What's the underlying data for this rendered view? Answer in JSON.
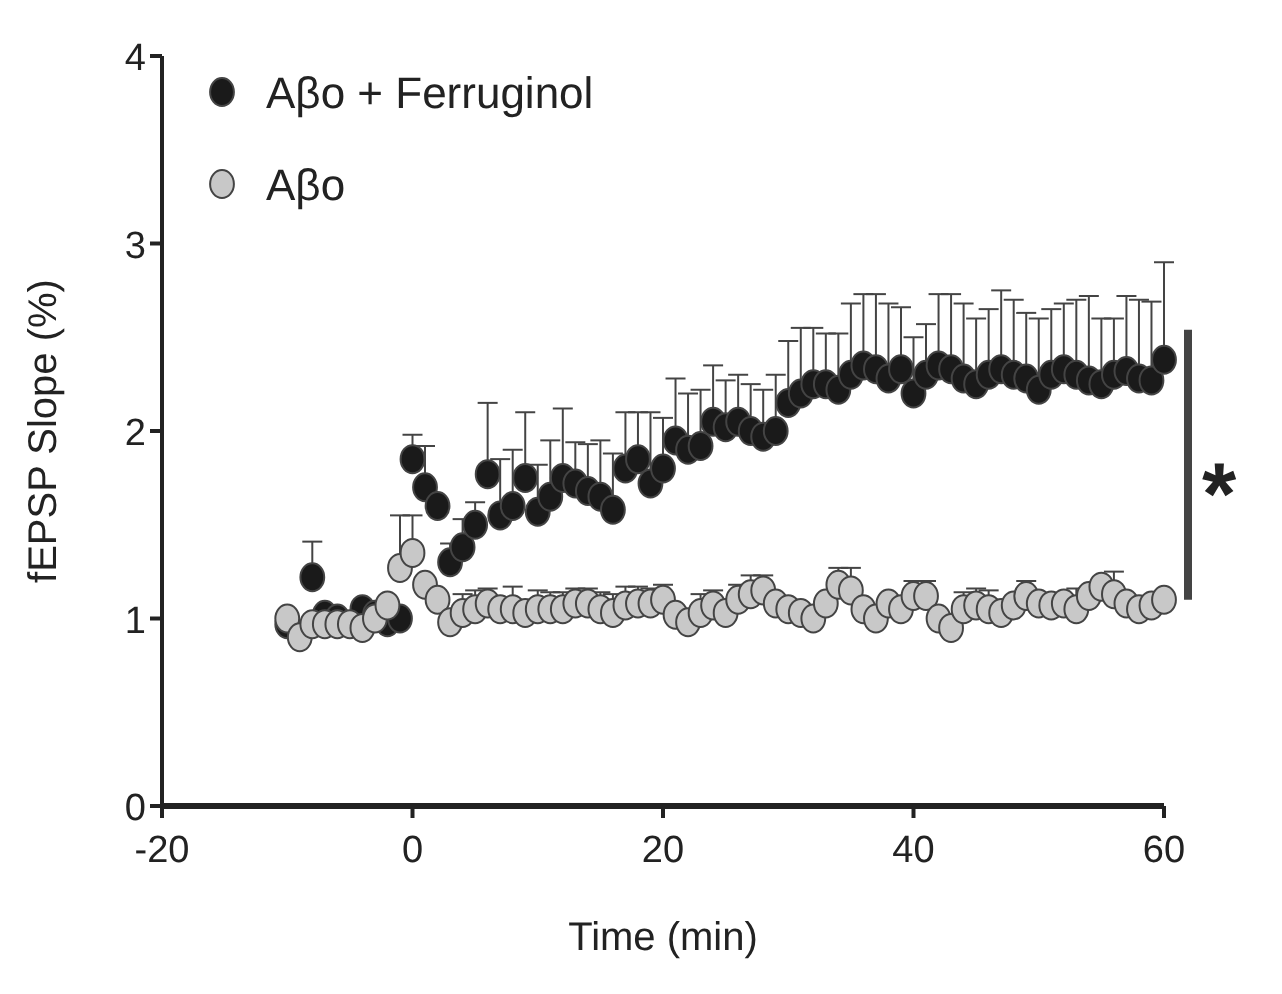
{
  "chart_data": {
    "type": "scatter",
    "xlabel": "Time (min)",
    "ylabel": "fEPSP Slope (%)",
    "xlim": [
      -20,
      60
    ],
    "xticks": [
      -20,
      0,
      20,
      40,
      60
    ],
    "ylim": [
      0,
      4
    ],
    "yticks": [
      0,
      1,
      2,
      3,
      4
    ],
    "marker": "circle",
    "legend": "top left",
    "grid": false,
    "annotations": [
      "*"
    ],
    "x": [
      -10,
      -9,
      -8,
      -7,
      -6,
      -5,
      -4,
      -3,
      -2,
      -1,
      0,
      1,
      2,
      3,
      4,
      5,
      6,
      7,
      8,
      9,
      10,
      11,
      12,
      13,
      14,
      15,
      16,
      17,
      18,
      19,
      20,
      21,
      22,
      23,
      24,
      25,
      26,
      27,
      28,
      29,
      30,
      31,
      32,
      33,
      34,
      35,
      36,
      37,
      38,
      39,
      40,
      41,
      42,
      43,
      44,
      45,
      46,
      47,
      48,
      49,
      50,
      51,
      52,
      53,
      54,
      55,
      56,
      57,
      58,
      59,
      60
    ],
    "series": [
      {
        "name": "Aβo + Ferruginol",
        "color": "#1a1a1a",
        "values": [
          0.97,
          null,
          1.22,
          1.02,
          1.0,
          null,
          1.05,
          1.02,
          0.98,
          1.0,
          1.85,
          1.7,
          1.6,
          1.3,
          1.38,
          1.5,
          1.77,
          1.55,
          1.6,
          1.75,
          1.57,
          1.65,
          1.75,
          1.72,
          1.68,
          1.65,
          1.58,
          1.8,
          1.85,
          1.72,
          1.8,
          1.95,
          1.9,
          1.92,
          2.05,
          2.02,
          2.05,
          2.0,
          1.97,
          2.0,
          2.15,
          2.2,
          2.25,
          2.25,
          2.22,
          2.3,
          2.35,
          2.33,
          2.28,
          2.33,
          2.2,
          2.3,
          2.35,
          2.33,
          2.28,
          2.25,
          2.3,
          2.33,
          2.3,
          2.28,
          2.22,
          2.3,
          2.33,
          2.3,
          2.27,
          2.25,
          2.3,
          2.32,
          2.28,
          2.27,
          2.38
        ],
        "errors": [
          null,
          null,
          [
            1.22,
            1.41
          ],
          null,
          null,
          null,
          null,
          null,
          null,
          null,
          [
            1.85,
            1.98
          ],
          [
            1.7,
            1.92
          ],
          null,
          [
            1.3,
            1.4
          ],
          [
            1.38,
            1.53
          ],
          [
            1.5,
            1.62
          ],
          [
            1.77,
            2.15
          ],
          [
            1.55,
            1.85
          ],
          [
            1.6,
            1.9
          ],
          [
            1.75,
            2.1
          ],
          [
            1.57,
            1.82
          ],
          [
            1.65,
            1.95
          ],
          [
            1.75,
            2.12
          ],
          [
            1.72,
            1.94
          ],
          [
            1.68,
            1.93
          ],
          [
            1.65,
            1.95
          ],
          [
            1.58,
            1.88
          ],
          [
            1.8,
            2.1
          ],
          [
            1.85,
            2.1
          ],
          [
            1.72,
            2.1
          ],
          [
            1.8,
            2.07
          ],
          [
            1.95,
            2.28
          ],
          [
            1.9,
            2.2
          ],
          [
            1.92,
            2.22
          ],
          [
            2.05,
            2.35
          ],
          [
            2.02,
            2.27
          ],
          [
            2.05,
            2.3
          ],
          [
            2.0,
            2.25
          ],
          [
            1.97,
            2.22
          ],
          [
            2.0,
            2.3
          ],
          [
            2.15,
            2.48
          ],
          [
            2.2,
            2.55
          ],
          [
            2.25,
            2.55
          ],
          [
            2.25,
            2.52
          ],
          [
            2.22,
            2.52
          ],
          [
            2.3,
            2.68
          ],
          [
            2.35,
            2.73
          ],
          [
            2.33,
            2.73
          ],
          [
            2.28,
            2.68
          ],
          [
            2.33,
            2.66
          ],
          [
            2.2,
            2.5
          ],
          [
            2.3,
            2.57
          ],
          [
            2.35,
            2.73
          ],
          [
            2.33,
            2.73
          ],
          [
            2.28,
            2.68
          ],
          [
            2.25,
            2.6
          ],
          [
            2.3,
            2.65
          ],
          [
            2.33,
            2.75
          ],
          [
            2.3,
            2.7
          ],
          [
            2.28,
            2.63
          ],
          [
            2.22,
            2.6
          ],
          [
            2.3,
            2.65
          ],
          [
            2.33,
            2.68
          ],
          [
            2.3,
            2.7
          ],
          [
            2.27,
            2.72
          ],
          [
            2.25,
            2.6
          ],
          [
            2.3,
            2.6
          ],
          [
            2.32,
            2.72
          ],
          [
            2.28,
            2.7
          ],
          [
            2.27,
            2.69
          ],
          [
            2.38,
            2.9
          ]
        ]
      },
      {
        "name": "Aβo",
        "color": "#c8c8c8",
        "values": [
          1.0,
          0.9,
          0.97,
          0.97,
          0.97,
          0.97,
          0.95,
          1.0,
          1.07,
          1.27,
          1.35,
          1.18,
          1.1,
          0.98,
          1.03,
          1.05,
          1.08,
          1.05,
          1.05,
          1.03,
          1.05,
          1.05,
          1.05,
          1.08,
          1.08,
          1.05,
          1.03,
          1.07,
          1.08,
          1.08,
          1.1,
          1.02,
          0.98,
          1.03,
          1.07,
          1.03,
          1.1,
          1.13,
          1.15,
          1.08,
          1.05,
          1.03,
          1.0,
          1.08,
          1.18,
          1.15,
          1.05,
          1.0,
          1.08,
          1.05,
          1.12,
          1.12,
          1.0,
          0.95,
          1.05,
          1.07,
          1.05,
          1.03,
          1.07,
          1.12,
          1.08,
          1.07,
          1.08,
          1.05,
          1.12,
          1.17,
          1.13,
          1.08,
          1.05,
          1.07,
          1.1
        ],
        "errors": [
          null,
          null,
          null,
          null,
          null,
          null,
          null,
          null,
          null,
          [
            1.27,
            1.55
          ],
          [
            1.35,
            1.55
          ],
          null,
          null,
          null,
          [
            1.03,
            1.13
          ],
          [
            1.05,
            1.15
          ],
          [
            1.08,
            1.16
          ],
          null,
          [
            1.05,
            1.17
          ],
          null,
          [
            1.05,
            1.15
          ],
          [
            1.05,
            1.14
          ],
          [
            1.05,
            1.14
          ],
          [
            1.08,
            1.16
          ],
          [
            1.08,
            1.16
          ],
          [
            1.05,
            1.14
          ],
          [
            1.03,
            1.13
          ],
          [
            1.07,
            1.17
          ],
          [
            1.08,
            1.17
          ],
          [
            1.08,
            1.16
          ],
          [
            1.1,
            1.18
          ],
          null,
          null,
          [
            1.03,
            1.13
          ],
          [
            1.07,
            1.15
          ],
          null,
          [
            1.1,
            1.18
          ],
          [
            1.13,
            1.23
          ],
          [
            1.15,
            1.23
          ],
          null,
          null,
          null,
          null,
          null,
          [
            1.18,
            1.27
          ],
          [
            1.15,
            1.27
          ],
          null,
          null,
          null,
          null,
          [
            1.12,
            1.2
          ],
          [
            1.12,
            1.2
          ],
          null,
          null,
          [
            1.05,
            1.14
          ],
          [
            1.07,
            1.16
          ],
          [
            1.05,
            1.15
          ],
          null,
          null,
          [
            1.12,
            1.2
          ],
          null,
          null,
          null,
          [
            1.08,
            1.16
          ],
          null,
          null,
          [
            1.17,
            1.25
          ],
          null,
          null,
          null,
          null
        ]
      }
    ]
  }
}
